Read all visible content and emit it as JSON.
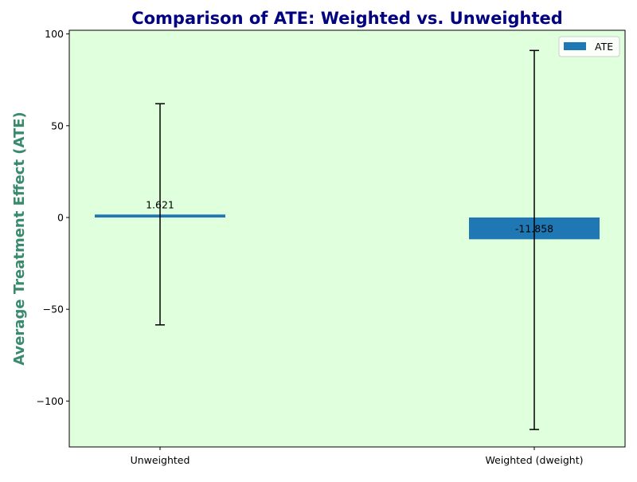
{
  "colors": {
    "plot_background": "#e0ffdc",
    "bar": "#1f77b4",
    "title": "#000080",
    "ylabel": "#3a8a6e",
    "error_bar": "#000000"
  },
  "chart_data": {
    "type": "bar",
    "title": "Comparison of ATE: Weighted vs. Unweighted",
    "xlabel": "",
    "ylabel": "Average Treatment Effect (ATE)",
    "categories": [
      "Unweighted",
      "Weighted (dweight)"
    ],
    "series": [
      {
        "name": "ATE",
        "values": [
          1.621,
          -11.858
        ],
        "error_lower": [
          -58.5,
          -115.5
        ],
        "error_upper": [
          62,
          91
        ]
      }
    ],
    "data_labels": [
      "1.621",
      "-11.858"
    ],
    "ylim": [
      -125,
      102
    ],
    "yticks": [
      -100,
      -50,
      0,
      50,
      100
    ],
    "ytick_labels": [
      "−100",
      "−50",
      "0",
      "50",
      "100"
    ],
    "legend_position": "top-right",
    "grid": false
  }
}
